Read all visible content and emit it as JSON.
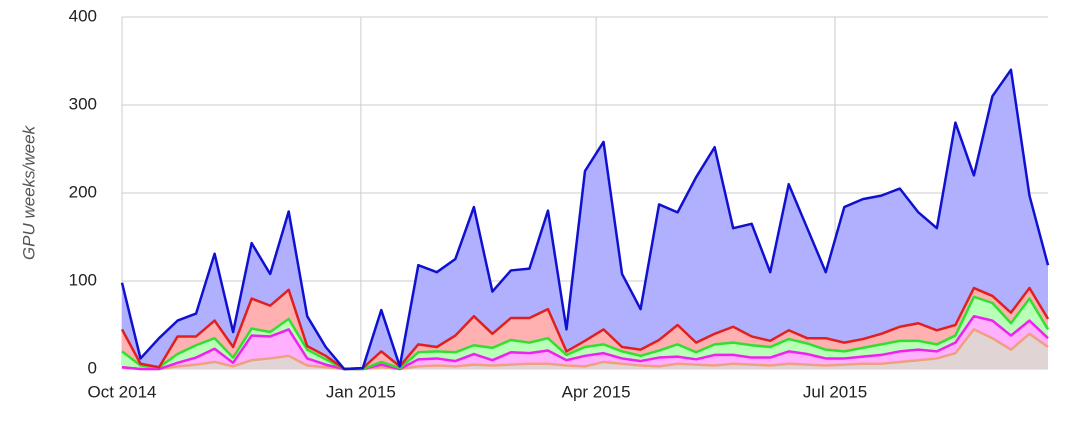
{
  "chart_data": {
    "type": "area",
    "stacked": true,
    "y_label": "GPU weeks/week",
    "x": [
      0,
      1,
      2,
      3,
      4,
      5,
      6,
      7,
      8,
      9,
      10,
      11,
      12,
      13,
      14,
      15,
      16,
      17,
      18,
      19,
      20,
      21,
      22,
      23,
      24,
      25,
      26,
      27,
      28,
      29,
      30,
      31,
      32,
      33,
      34,
      35,
      36,
      37,
      38,
      39,
      40,
      41,
      42,
      43,
      44,
      45,
      46,
      47,
      48,
      49,
      50
    ],
    "xlim": [
      0,
      50
    ],
    "xticks": [
      {
        "value": 0,
        "label": "Oct 2014"
      },
      {
        "value": 12.9,
        "label": "Jan 2015"
      },
      {
        "value": 25.6,
        "label": "Apr 2015"
      },
      {
        "value": 38.5,
        "label": "Jul 2015"
      }
    ],
    "ylim": [
      0,
      400
    ],
    "yticks": [
      0,
      100,
      200,
      300,
      400
    ],
    "grid": true,
    "series": [
      {
        "color": "#f0a080",
        "fill": "#e0d4d4",
        "values": [
          2,
          0,
          0,
          3,
          5,
          8,
          3,
          10,
          12,
          15,
          4,
          2,
          0,
          0,
          2,
          0,
          3,
          4,
          3,
          5,
          4,
          5,
          6,
          6,
          4,
          3,
          8,
          6,
          4,
          3,
          6,
          5,
          4,
          6,
          5,
          4,
          6,
          5,
          4,
          5,
          6,
          6,
          8,
          10,
          12,
          18,
          45,
          35,
          22,
          40,
          25
        ]
      },
      {
        "color": "#f020f0",
        "fill": "#ffb0ff",
        "values": [
          0,
          0,
          0,
          4,
          8,
          15,
          4,
          28,
          25,
          30,
          8,
          3,
          0,
          0,
          3,
          0,
          8,
          8,
          6,
          12,
          6,
          14,
          12,
          15,
          6,
          12,
          10,
          6,
          5,
          10,
          8,
          6,
          12,
          10,
          8,
          9,
          14,
          12,
          8,
          7,
          8,
          10,
          12,
          12,
          8,
          12,
          15,
          20,
          16,
          15,
          10
        ]
      },
      {
        "color": "#30e030",
        "fill": "#b8ffb8",
        "values": [
          18,
          4,
          2,
          10,
          14,
          12,
          6,
          8,
          5,
          12,
          10,
          6,
          0,
          0,
          3,
          1,
          8,
          8,
          10,
          10,
          14,
          14,
          12,
          14,
          6,
          10,
          10,
          8,
          6,
          8,
          14,
          8,
          12,
          14,
          14,
          12,
          14,
          12,
          10,
          8,
          10,
          12,
          12,
          10,
          8,
          8,
          22,
          20,
          14,
          25,
          10
        ]
      },
      {
        "color": "#e02020",
        "fill": "#ffb0b0",
        "values": [
          25,
          2,
          0,
          20,
          10,
          20,
          12,
          34,
          30,
          33,
          4,
          4,
          0,
          1,
          12,
          2,
          9,
          5,
          19,
          33,
          16,
          25,
          28,
          33,
          4,
          7,
          17,
          5,
          7,
          12,
          22,
          11,
          12,
          18,
          10,
          7,
          10,
          6,
          13,
          10,
          10,
          12,
          16,
          20,
          16,
          12,
          10,
          8,
          12,
          12,
          12
        ]
      },
      {
        "color": "#1010d0",
        "fill": "#b0b0ff",
        "values": [
          53,
          6,
          33,
          18,
          26,
          76,
          17,
          63,
          36,
          89,
          34,
          10,
          0,
          0,
          47,
          0,
          90,
          85,
          87,
          124,
          48,
          54,
          56,
          112,
          25,
          193,
          213,
          83,
          46,
          154,
          128,
          188,
          212,
          112,
          128,
          78,
          166,
          125,
          75,
          154,
          159,
          157,
          157,
          126,
          116,
          230,
          128,
          227,
          276,
          105,
          61
        ]
      }
    ]
  }
}
